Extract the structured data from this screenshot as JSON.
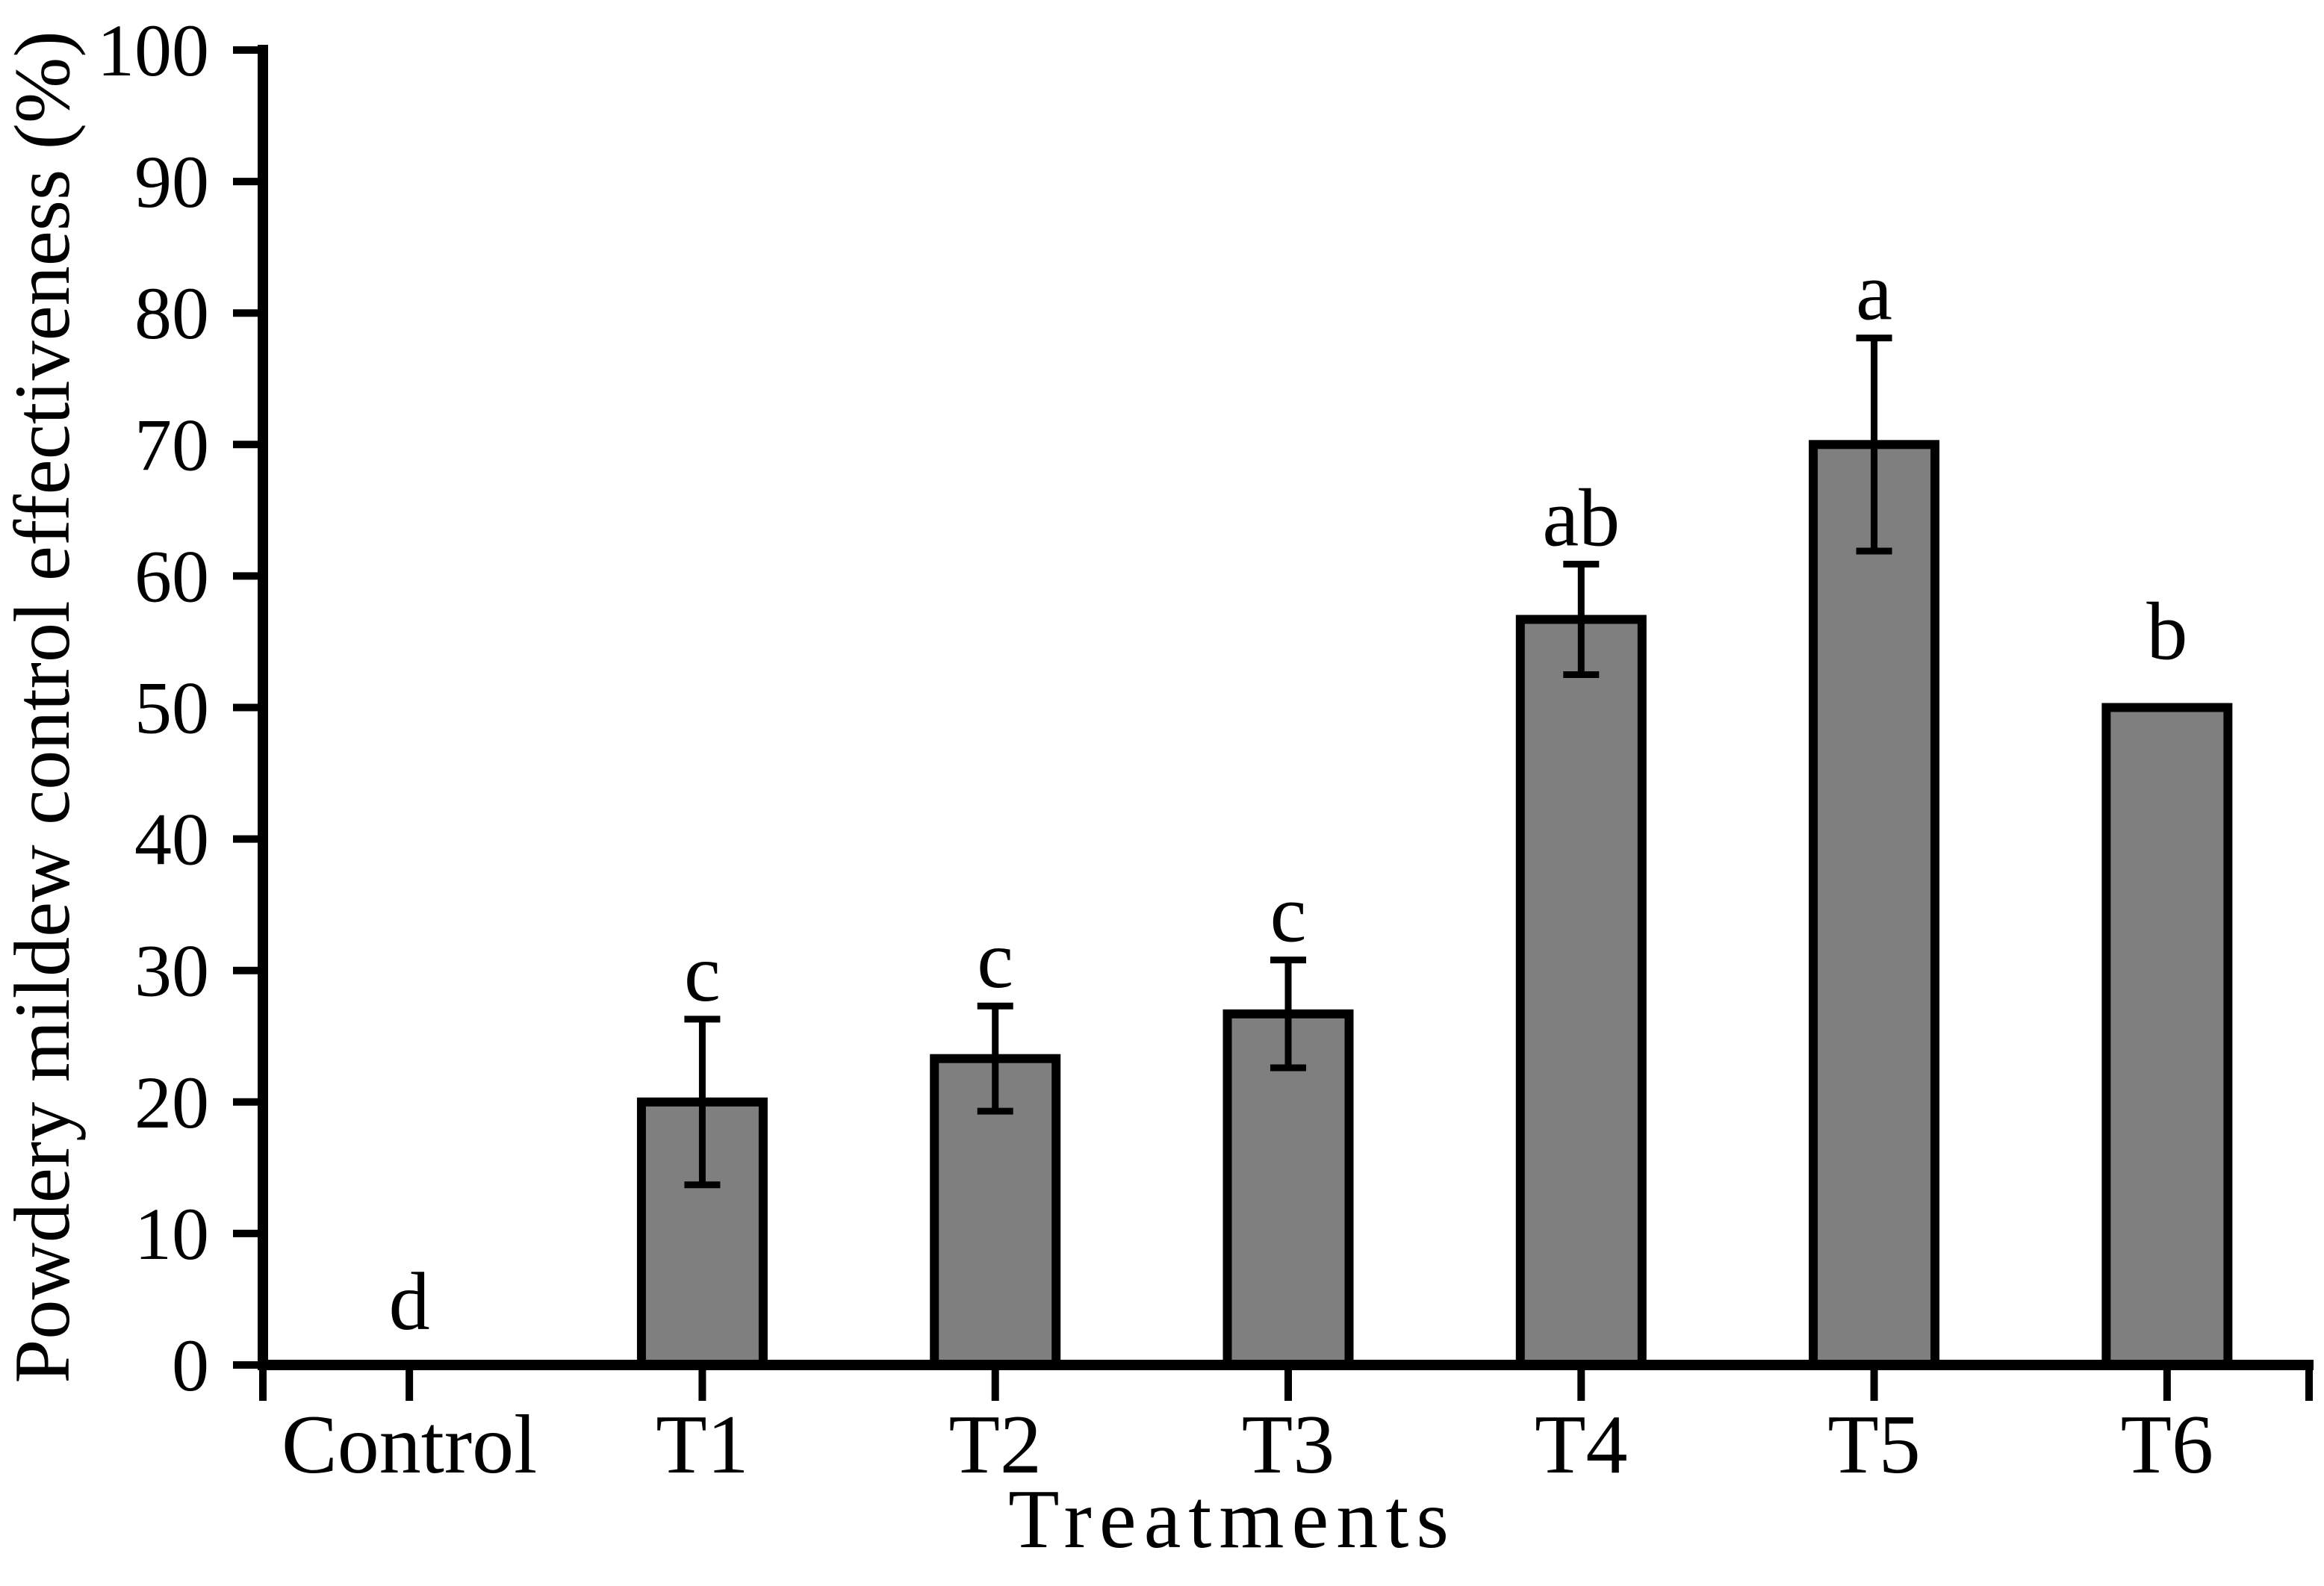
{
  "chart_data": {
    "type": "bar",
    "title": "",
    "categories": [
      "Control",
      "T1",
      "T2",
      "T3",
      "T4",
      "T5",
      "T6"
    ],
    "values": [
      0,
      20,
      23.3,
      26.7,
      56.7,
      70,
      50
    ],
    "error_bars": [
      null,
      6.3,
      4.0,
      4.1,
      4.2,
      8.1,
      null
    ],
    "sig_letters": [
      "d",
      "c",
      "c",
      "c",
      "ab",
      "a",
      "b"
    ],
    "xlabel": "Treatments",
    "ylabel": "Powdery mildew control effectiveness (%)",
    "ylim": [
      0,
      100
    ],
    "ytick_step": 10,
    "ytick_labels": [
      "0",
      "10",
      "20",
      "30",
      "40",
      "50",
      "60",
      "70",
      "80",
      "90",
      "100"
    ],
    "grid": false,
    "legend": "none",
    "bar_fill": "#7f7f7f",
    "bar_stroke": "#000000",
    "axis_color": "#000000",
    "background": "#ffffff"
  }
}
